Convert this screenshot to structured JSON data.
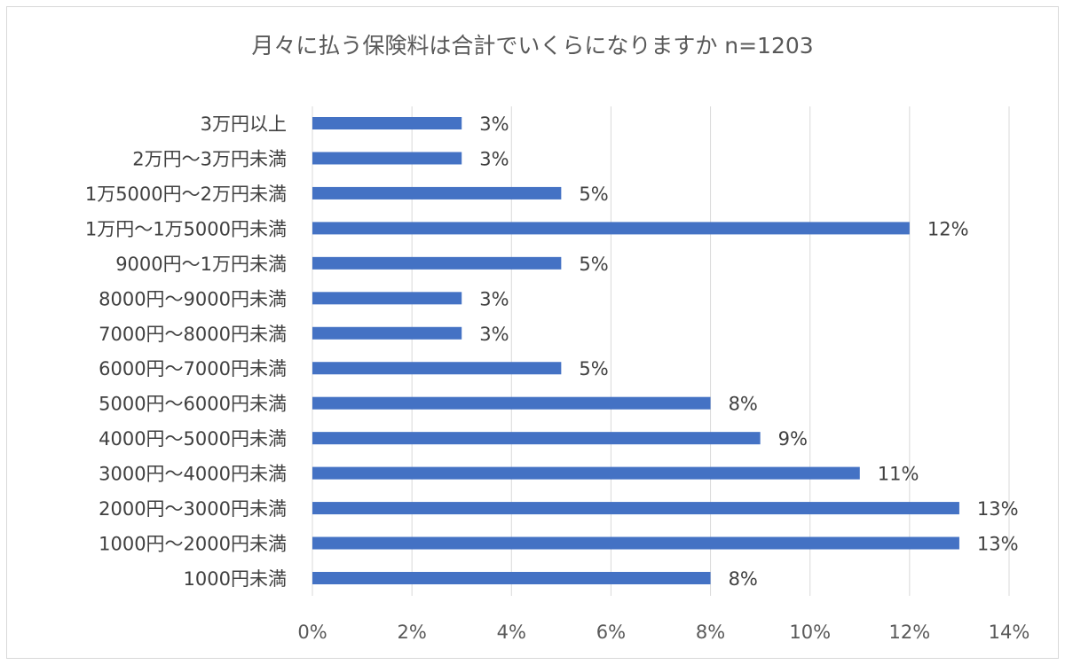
{
  "chart_data": {
    "type": "bar",
    "orientation": "horizontal",
    "title": "月々に払う保険料は合計でいくらになりますか n=1203",
    "xlabel": "",
    "ylabel": "",
    "xlim": [
      0,
      14
    ],
    "x_ticks": [
      "0%",
      "2%",
      "4%",
      "6%",
      "8%",
      "10%",
      "12%",
      "14%"
    ],
    "grid": true,
    "bar_color": "#4472C4",
    "categories": [
      "3万円以上",
      "2万円～3万円未満",
      "1万5000円～2万円未満",
      "1万円～1万5000円未満",
      "9000円～1万円未満",
      "8000円～9000円未満",
      "7000円～8000円未満",
      "6000円～7000円未満",
      "5000円～6000円未満",
      "4000円～5000円未満",
      "3000円～4000円未満",
      "2000円～3000円未満",
      "1000円～2000円未満",
      "1000円未満"
    ],
    "values": [
      3,
      3,
      5,
      12,
      5,
      3,
      3,
      5,
      8,
      9,
      11,
      13,
      13,
      8
    ],
    "value_labels": [
      "3%",
      "3%",
      "5%",
      "12%",
      "5%",
      "3%",
      "3%",
      "5%",
      "8%",
      "9%",
      "11%",
      "13%",
      "13%",
      "8%"
    ]
  }
}
